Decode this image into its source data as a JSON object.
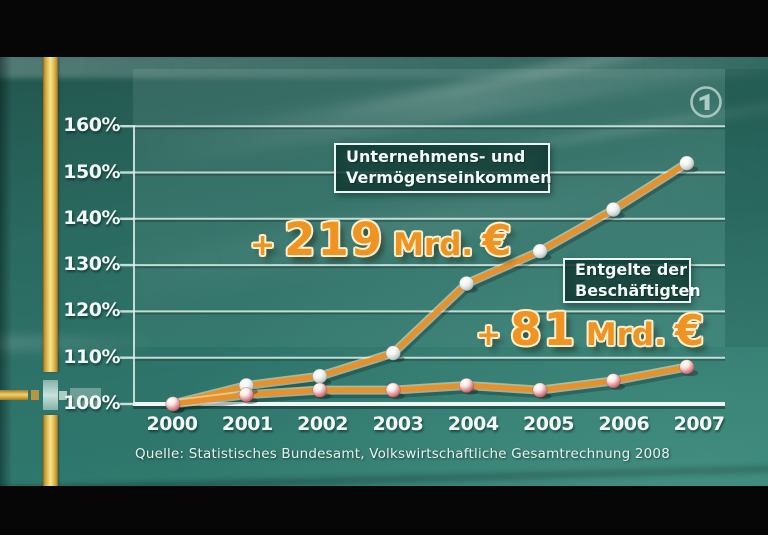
{
  "channel": {
    "logo_icon": "ard-1-logo"
  },
  "chart_data": {
    "type": "line",
    "title": "",
    "categories": [
      "2000",
      "2001",
      "2002",
      "2003",
      "2004",
      "2005",
      "2006",
      "2007"
    ],
    "yticks": [
      100,
      110,
      120,
      130,
      140,
      150,
      160
    ],
    "ytick_labels": [
      "100%",
      "110%",
      "120%",
      "130%",
      "140%",
      "150%",
      "160%"
    ],
    "ylim": [
      100,
      163
    ],
    "grid": true,
    "legend_position": "inline-boxes",
    "series": [
      {
        "name": "Unternehmens- und Vermögenseinkommen",
        "label_box": "Unternehmens- und\nVermögenseinkommen",
        "values": [
          100,
          104,
          106,
          111,
          126,
          133,
          142,
          152
        ],
        "delta": {
          "plus": "+",
          "value": "219",
          "unit": "Mrd.",
          "currency": "€"
        },
        "line_color": "#e8912a",
        "point_style": "white-pearl"
      },
      {
        "name": "Entgelte der Beschäftigten",
        "label_box": "Entgelte der\nBeschäftigten",
        "values": [
          100,
          102,
          103,
          103,
          104,
          103,
          105,
          108
        ],
        "delta": {
          "plus": "+",
          "value": "81",
          "unit": "Mrd.",
          "currency": "€"
        },
        "line_color": "#e8912a",
        "point_style": "red-pearl"
      }
    ]
  },
  "source_caption": "Quelle: Statistisches Bundesamt, Volkswirtschaftliche Gesamtrechnung 2008",
  "colors": {
    "background_teal": "#2e7268",
    "line_orange": "#e8912a",
    "annotation_orange": "#ef9422",
    "annotation_outline": "#fcf0cf",
    "stripe_yellow": "#ecd06c",
    "label_box_background": "#245c54",
    "label_box_border": "#eaf4f2",
    "text_white": "#f2f8f6"
  }
}
